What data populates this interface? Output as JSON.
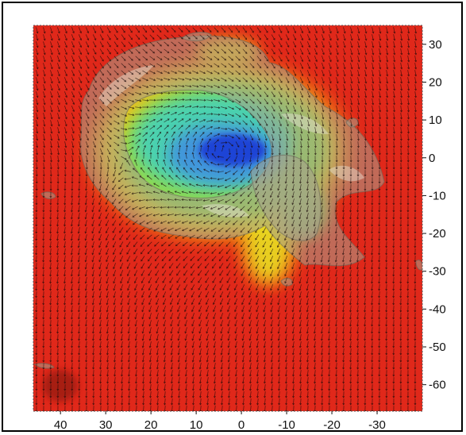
{
  "chart_data": {
    "type": "heatmap",
    "title": "",
    "xlabel": "",
    "ylabel": "",
    "xlim": [
      46,
      -40
    ],
    "ylim": [
      -67,
      35
    ],
    "x_ticks": [
      40,
      30,
      20,
      10,
      0,
      -10,
      -20,
      -30
    ],
    "x_tick_labels": [
      "40",
      "30",
      "20",
      "10",
      "0",
      "-10",
      "-20",
      "-30"
    ],
    "y_ticks": [
      30,
      20,
      10,
      0,
      -10,
      -20,
      -30,
      -40,
      -50,
      -60
    ],
    "y_tick_labels": [
      "30",
      "20",
      "10",
      "0",
      "-10",
      "-20",
      "-30",
      "-40",
      "-50",
      "-60"
    ],
    "x_axis_position": "bottom",
    "y_axis_position": "right",
    "background_color": "#e0281a",
    "colormap": [
      "#1e3fd6",
      "#3f8fe0",
      "#3fd0c0",
      "#7ddc5a",
      "#e8e020",
      "#f08a14",
      "#e0281a"
    ],
    "overlays": [
      "velocity-vector-field",
      "translucent-isosurface"
    ],
    "features": {
      "low_center": [
        2,
        2
      ],
      "low_value_region": "blue core near (0, 0) surrounded by cyan/green ring",
      "yellow_tongue": "extends south from (-5, -15) to (-8, -32)"
    },
    "grid": false,
    "legend": "none"
  }
}
